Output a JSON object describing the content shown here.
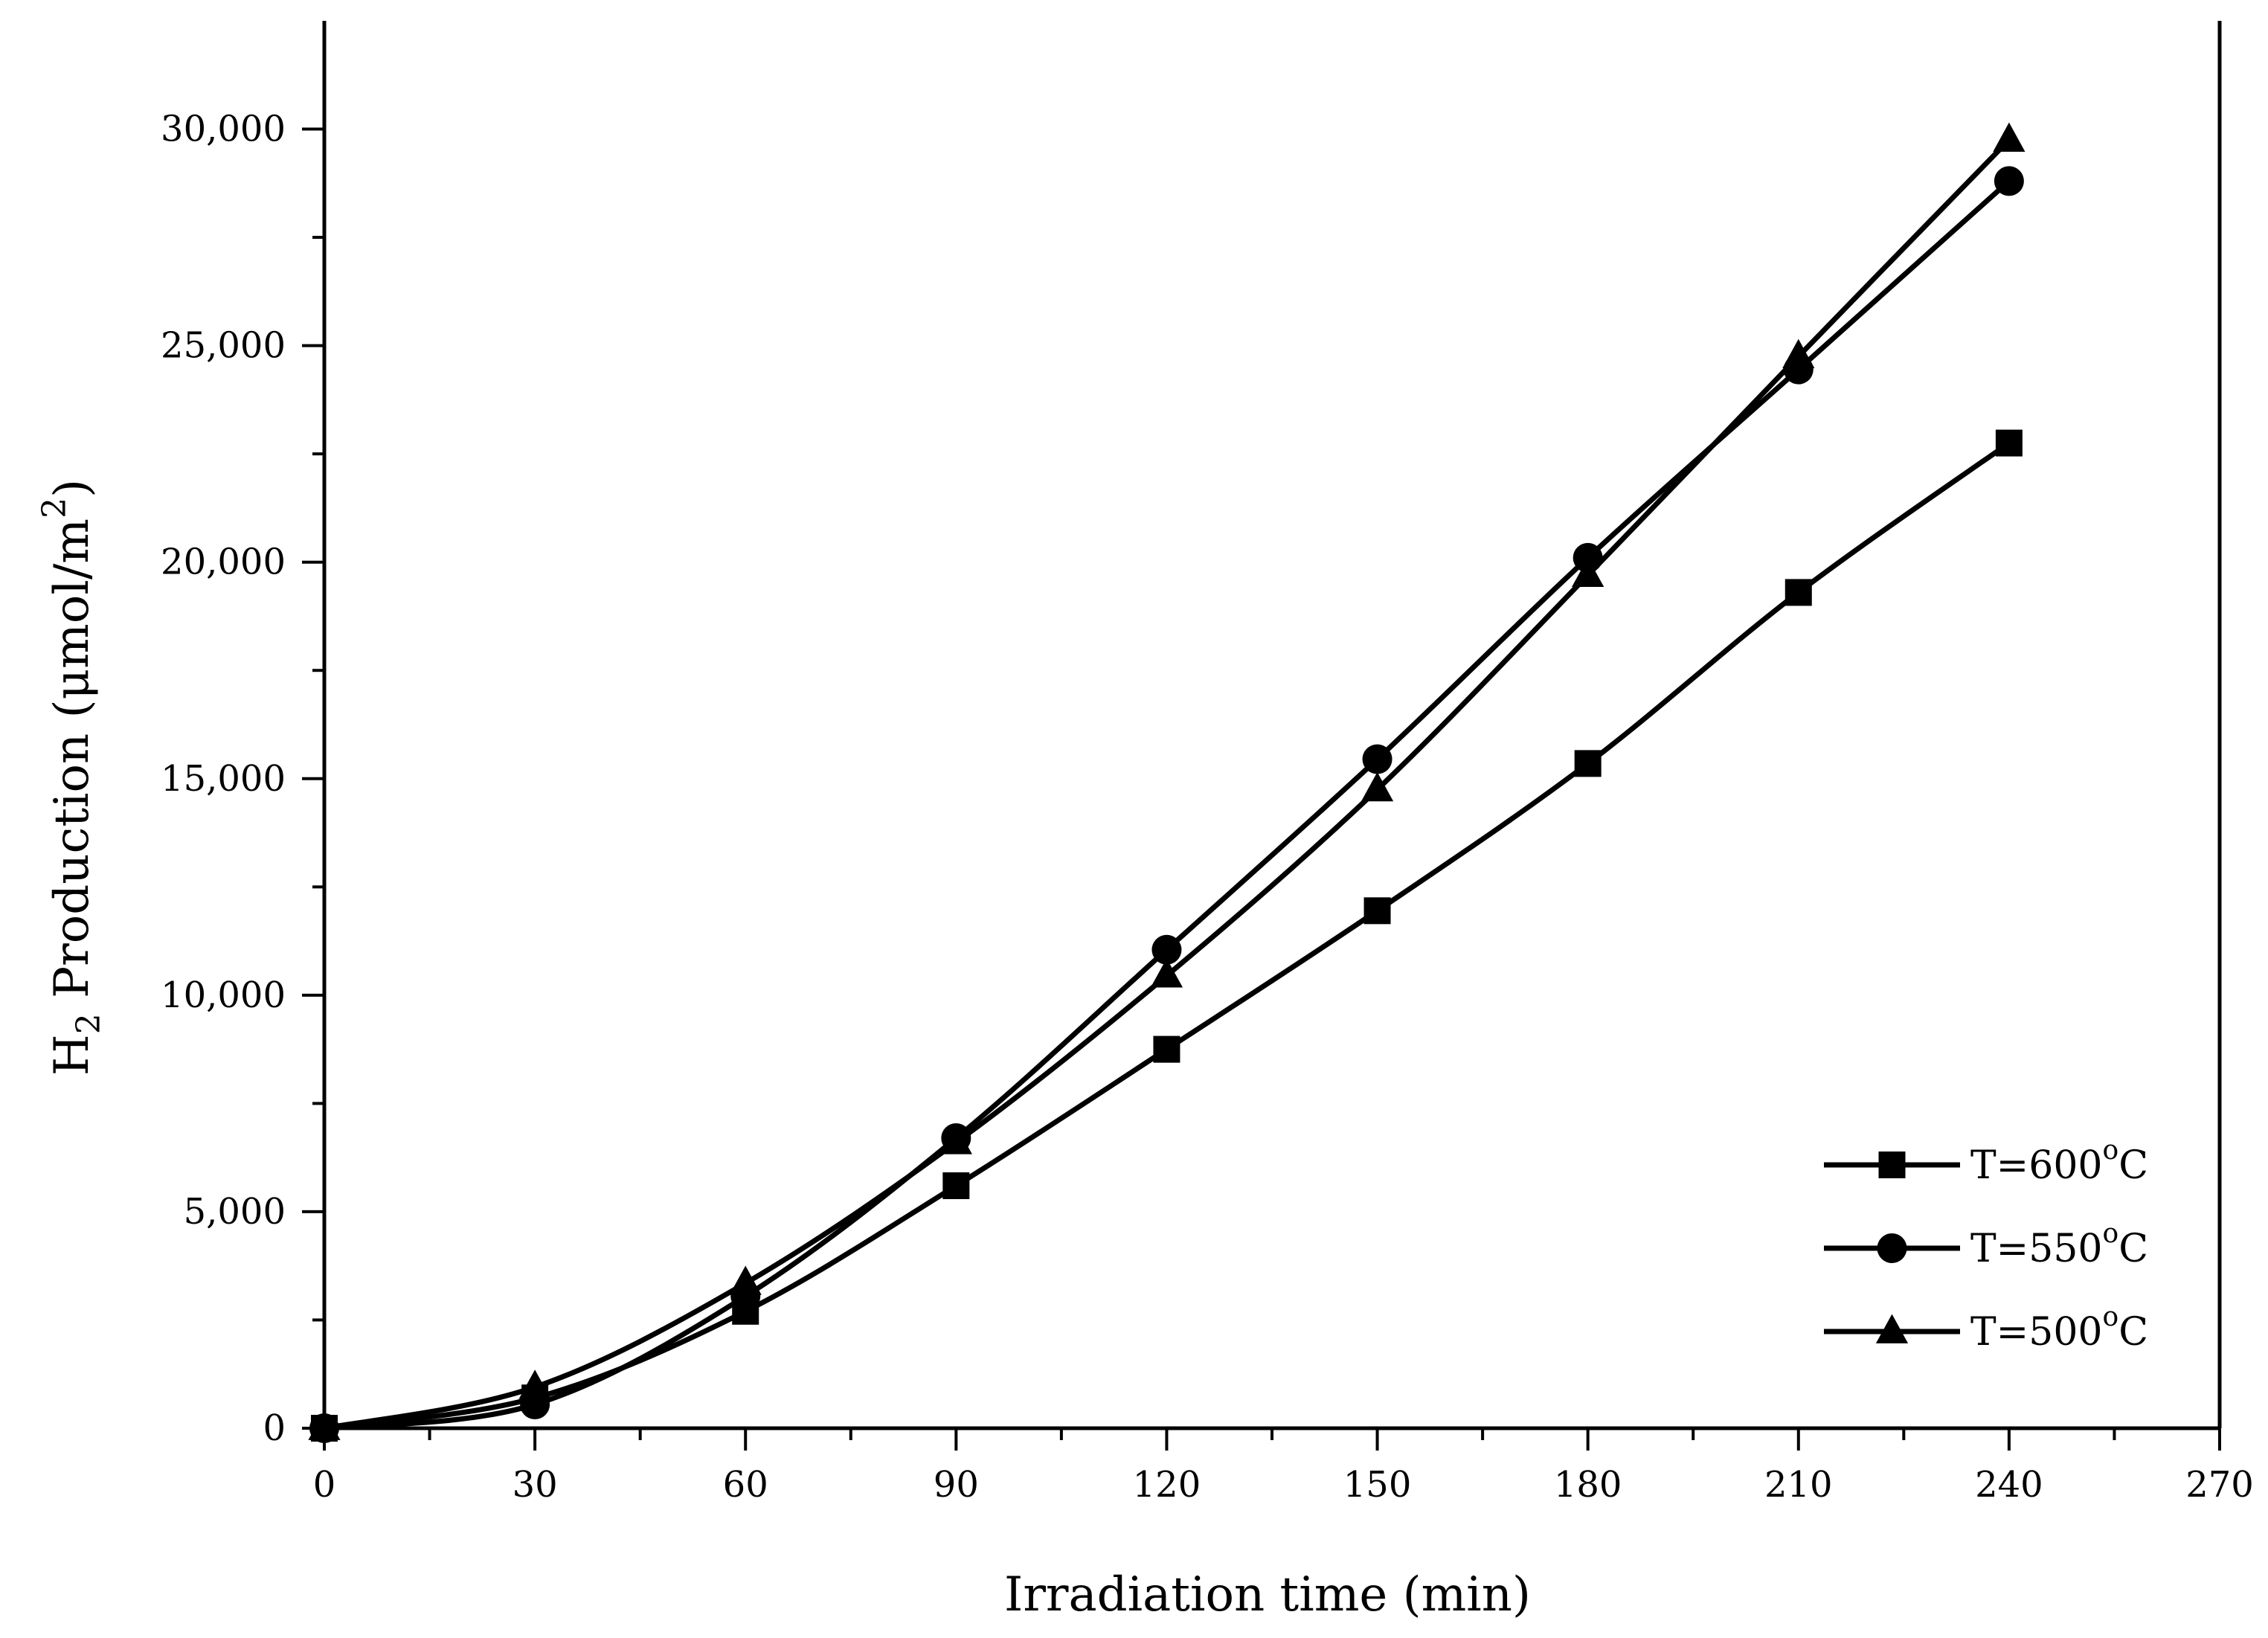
{
  "chart_data": {
    "type": "line",
    "title": "",
    "xlabel": "Irradiation time (min)",
    "ylabel": {
      "main": "H",
      "main_sub": "2",
      "rest": " Production (μmol/m",
      "rest_sup": "2",
      "close": ")"
    },
    "xlim": [
      0,
      270
    ],
    "ylim": [
      0,
      32500
    ],
    "x_major_ticks": [
      0,
      30,
      60,
      90,
      120,
      150,
      180,
      210,
      240,
      270
    ],
    "x_tick_labels": [
      "0",
      "30",
      "60",
      "90",
      "120",
      "150",
      "180",
      "210",
      "240",
      "270"
    ],
    "y_major_ticks": [
      0,
      5000,
      10000,
      15000,
      20000,
      25000,
      30000
    ],
    "y_tick_labels": [
      "0",
      "5,000",
      "10,000",
      "15,000",
      "20,000",
      "25,000",
      "30,000"
    ],
    "grid": false,
    "legend_position": "bottom-right",
    "color": "#000000",
    "x": [
      0,
      30,
      60,
      90,
      120,
      150,
      180,
      210,
      240
    ],
    "series": [
      {
        "name": "T=600°C",
        "label_main": "T=600",
        "label_sup": "o",
        "label_tail": "C",
        "marker": "square",
        "values": [
          0,
          700,
          2700,
          5600,
          8750,
          11950,
          15350,
          19300,
          22750
        ]
      },
      {
        "name": "T=550°C",
        "label_main": "T=550",
        "label_sup": "o",
        "label_tail": "C",
        "marker": "circle",
        "values": [
          0,
          550,
          3050,
          6700,
          11050,
          15450,
          20100,
          24450,
          28800
        ]
      },
      {
        "name": "T=500°C",
        "label_main": "T=500",
        "label_sup": "o",
        "label_tail": "C",
        "marker": "triangle",
        "values": [
          0,
          950,
          3350,
          6600,
          10450,
          14750,
          19700,
          24750,
          29750
        ]
      }
    ]
  }
}
